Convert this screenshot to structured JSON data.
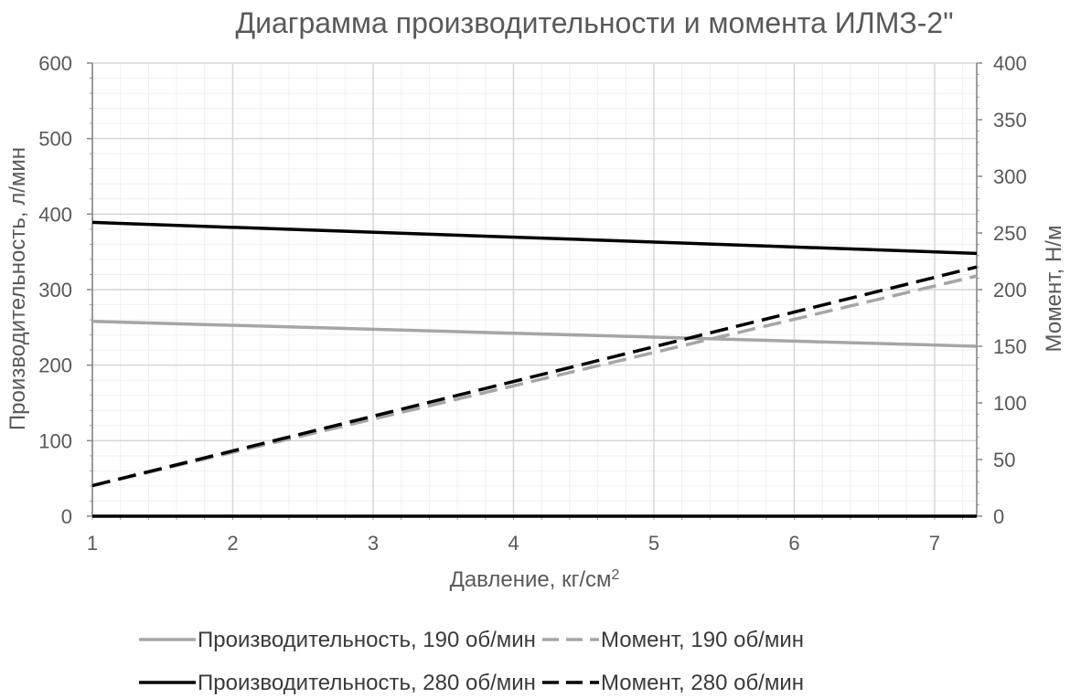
{
  "chart_data": {
    "type": "line",
    "title": "Диаграмма производительности и момента ИЛМЗ-2\"",
    "xlabel": "Давление, кг/см",
    "xlabel_sup": "2",
    "ylabel": "Производительность, л/мин",
    "y2label": "Момент, Н/м",
    "xlim": [
      1,
      7.3
    ],
    "ylim": [
      0,
      600
    ],
    "y2lim": [
      0,
      400
    ],
    "x_ticks": [
      "1",
      "2",
      "3",
      "4",
      "5",
      "6",
      "7"
    ],
    "y_ticks": [
      "0",
      "100",
      "200",
      "300",
      "400",
      "500",
      "600"
    ],
    "y2_ticks": [
      "0",
      "50",
      "100",
      "150",
      "200",
      "250",
      "300",
      "350",
      "400"
    ],
    "grid": true,
    "legend_position": "bottom",
    "series": [
      {
        "name": "Производительность, 190 об/мин",
        "axis": "left",
        "style": "solid",
        "color": "#a6a6a6",
        "x": [
          1,
          7.3
        ],
        "y": [
          258,
          225
        ]
      },
      {
        "name": "Момент, 190 об/мин",
        "axis": "right",
        "style": "dashed",
        "color": "#a6a6a6",
        "x": [
          1,
          7.3
        ],
        "y": [
          27,
          212
        ]
      },
      {
        "name": "Производительность, 280 об/мин",
        "axis": "left",
        "style": "solid",
        "color": "#000000",
        "x": [
          1,
          7.3
        ],
        "y": [
          389,
          348
        ]
      },
      {
        "name": "Момент, 280 об/мин",
        "axis": "right",
        "style": "dashed",
        "color": "#000000",
        "x": [
          1,
          7.3
        ],
        "y": [
          27,
          220
        ]
      }
    ]
  }
}
